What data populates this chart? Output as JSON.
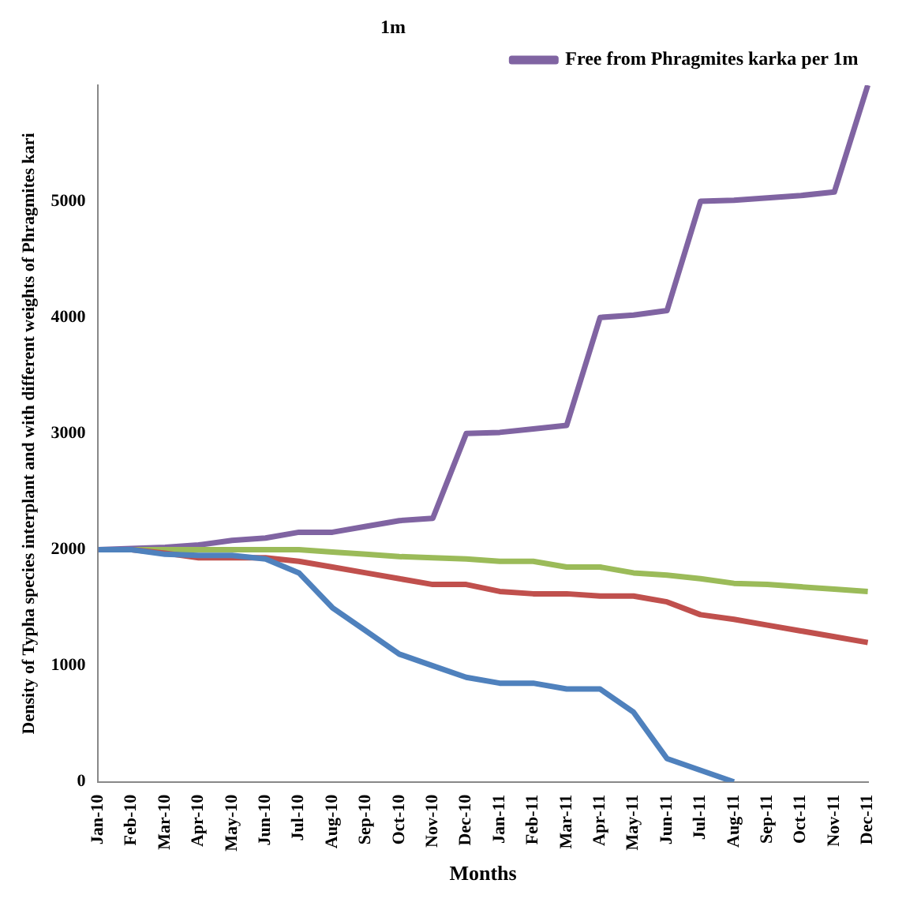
{
  "chart_data": {
    "type": "line",
    "xlabel": "Months",
    "ylabel": "Density of Typha species interplant and with different weights of Phragmites kari",
    "categories": [
      "Jan-10",
      "Feb-10",
      "Mar-10",
      "Apr-10",
      "May-10",
      "Jun-10",
      "Jul-10",
      "Aug-10",
      "Sep-10",
      "Oct-10",
      "Nov-10",
      "Dec-10",
      "Jan-11",
      "Feb-11",
      "Mar-11",
      "Apr-11",
      "May-11",
      "Jun-11",
      "Jul-11",
      "Aug-11",
      "Sep-11",
      "Oct-11",
      "Nov-11",
      "Dec-11"
    ],
    "series": [
      {
        "color": "#4f81bd",
        "values": [
          2000,
          2000,
          1960,
          1950,
          1950,
          1920,
          1800,
          1500,
          1300,
          1100,
          1000,
          900,
          850,
          850,
          800,
          800,
          600,
          200,
          100,
          0,
          null,
          null,
          null,
          null
        ]
      },
      {
        "color": "#c0504d",
        "values": [
          2000,
          2000,
          1970,
          1930,
          1930,
          1930,
          1900,
          1850,
          1800,
          1750,
          1700,
          1700,
          1640,
          1620,
          1620,
          1600,
          1600,
          1550,
          1440,
          1400,
          1350,
          1300,
          1250,
          1200
        ]
      },
      {
        "color": "#9bbb59",
        "values": [
          2000,
          2000,
          2000,
          2000,
          2000,
          2000,
          2000,
          1980,
          1960,
          1940,
          1930,
          1920,
          1900,
          1900,
          1850,
          1850,
          1800,
          1780,
          1750,
          1710,
          1700,
          1680,
          1660,
          1640
        ]
      },
      {
        "name": "Free from Phragmites karka per 1m",
        "color": "#8064a2",
        "values": [
          2000,
          2010,
          2020,
          2040,
          2080,
          2100,
          2150,
          2150,
          2200,
          2250,
          2270,
          3000,
          3010,
          3040,
          3070,
          4000,
          4020,
          4060,
          5000,
          5010,
          5030,
          5050,
          5080,
          6000
        ]
      }
    ],
    "ylim": [
      0,
      6000
    ],
    "yticks": [
      0,
      1000,
      2000,
      3000,
      4000,
      5000
    ],
    "grid": false,
    "legend": "top",
    "marker": "none",
    "line_style": "solid",
    "annotations": [
      "1m"
    ]
  }
}
